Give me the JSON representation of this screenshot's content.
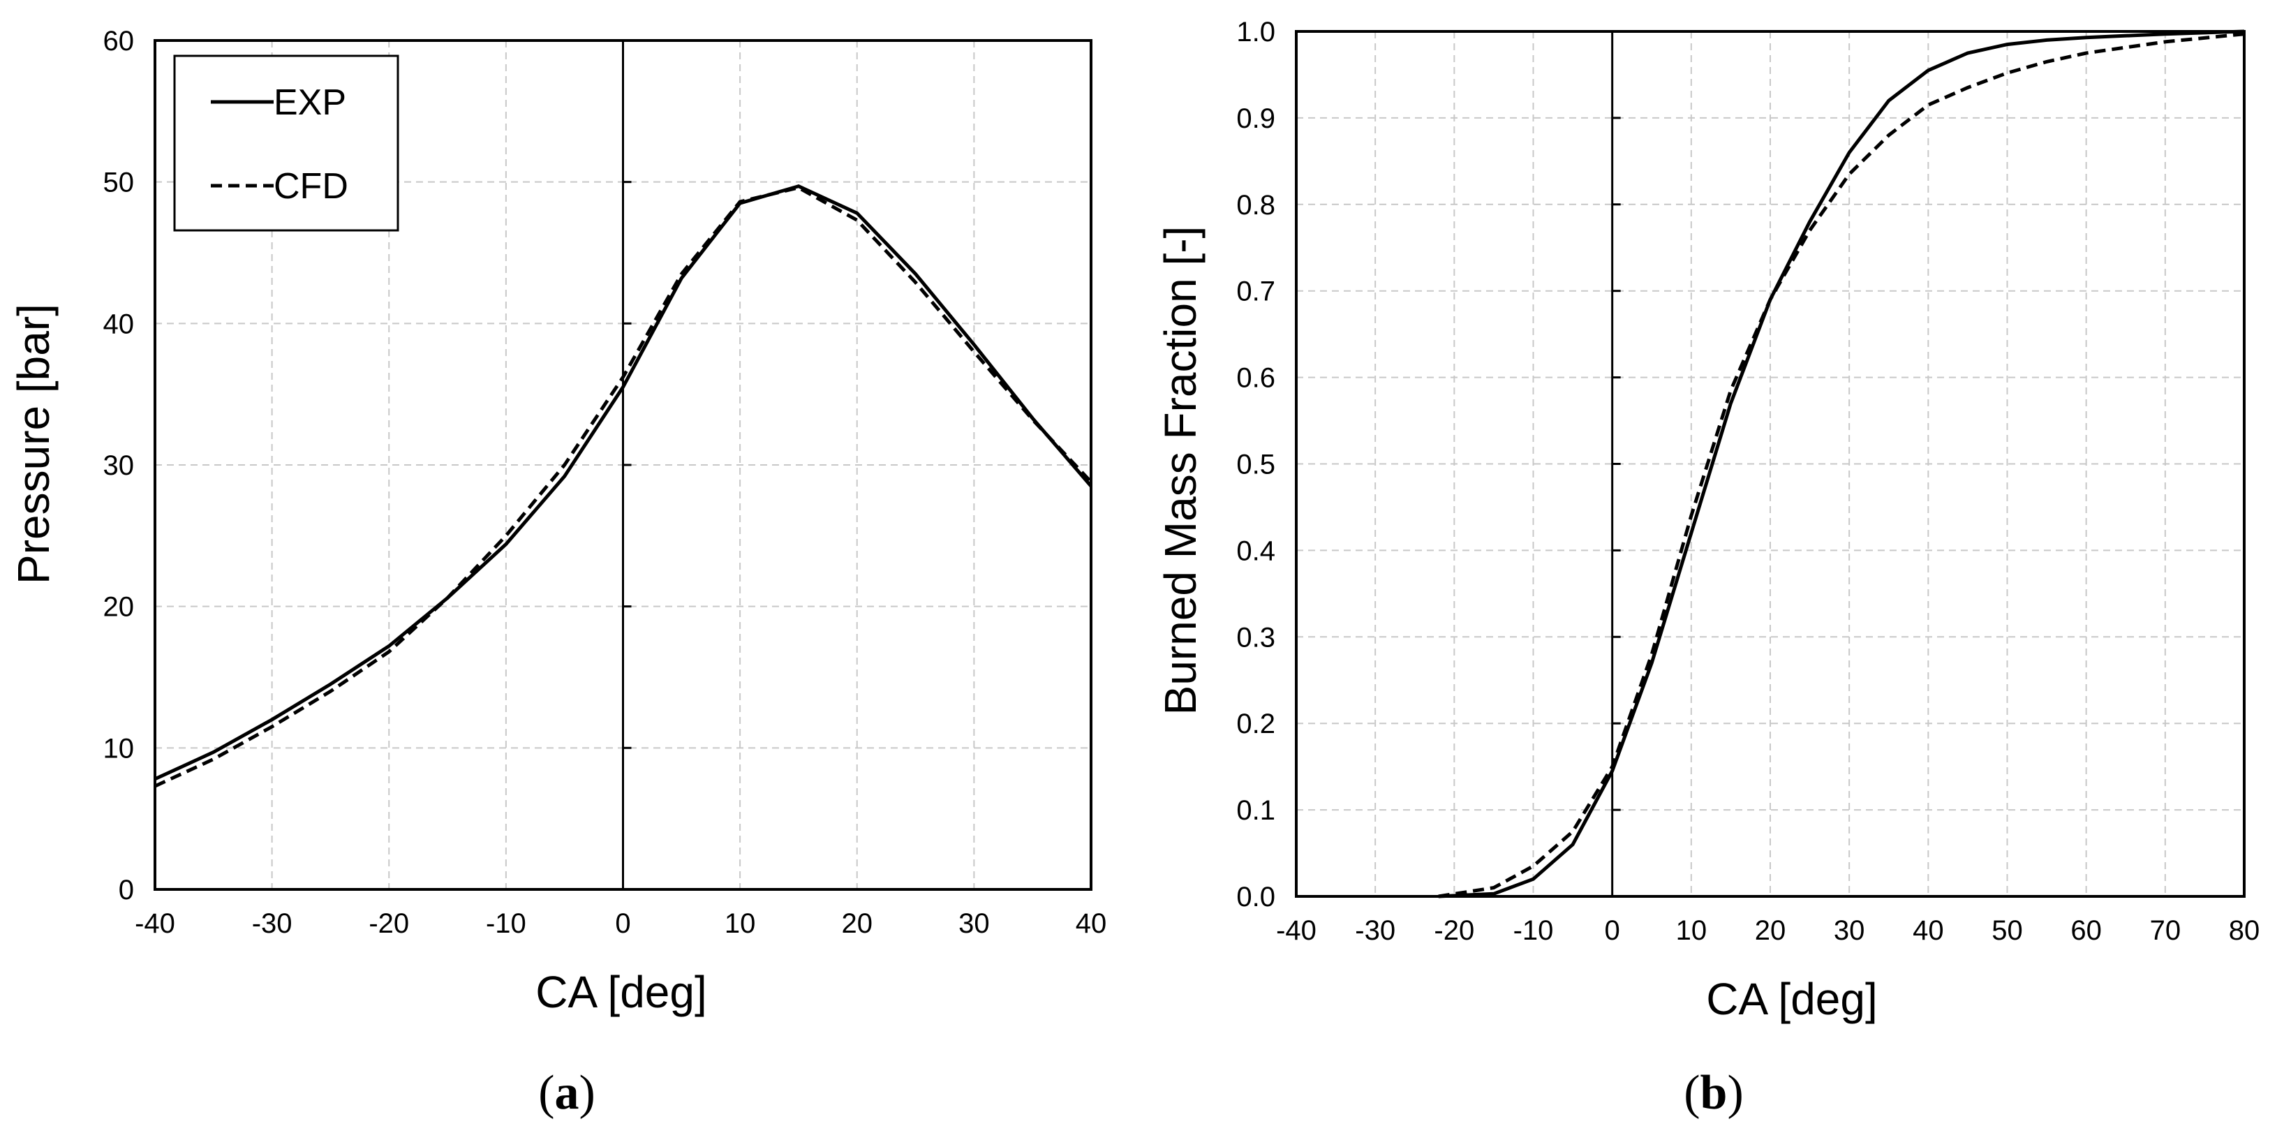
{
  "chart_data": [
    {
      "type": "line",
      "panel_label": "a",
      "title": "",
      "xlabel": "CA [deg]",
      "ylabel": "Pressure [bar]",
      "xlim": [
        -40,
        40
      ],
      "ylim": [
        0,
        60
      ],
      "x_ticks": [
        -40,
        -30,
        -20,
        -10,
        0,
        10,
        20,
        30,
        40
      ],
      "y_ticks": [
        0,
        10,
        20,
        30,
        40,
        50,
        60
      ],
      "x_tick_labels": [
        "-40",
        "-30",
        "-20",
        "-10",
        "0",
        "10",
        "20",
        "30",
        "40"
      ],
      "y_tick_labels": [
        "0",
        "10",
        "20",
        "30",
        "40",
        "50",
        "60"
      ],
      "grid": true,
      "legend": "top-left",
      "series": [
        {
          "name": "EXP",
          "style": "solid",
          "x": [
            -40,
            -35,
            -30,
            -25,
            -20,
            -15,
            -10,
            -5,
            0,
            5,
            10,
            15,
            20,
            25,
            30,
            35,
            40
          ],
          "y": [
            7.8,
            9.7,
            12.0,
            14.5,
            17.2,
            20.6,
            24.4,
            29.2,
            35.5,
            43.2,
            48.5,
            49.7,
            47.8,
            43.5,
            38.5,
            33.3,
            28.5
          ]
        },
        {
          "name": "CFD",
          "style": "dashed",
          "x": [
            -40,
            -35,
            -30,
            -25,
            -20,
            -15,
            -10,
            -5,
            0,
            5,
            10,
            15,
            20,
            25,
            30,
            35,
            40
          ],
          "y": [
            7.3,
            9.2,
            11.5,
            14.0,
            16.8,
            20.6,
            25.0,
            30.0,
            36.2,
            43.5,
            48.6,
            49.6,
            47.3,
            42.9,
            38.0,
            33.2,
            28.8
          ]
        }
      ]
    },
    {
      "type": "line",
      "panel_label": "b",
      "title": "",
      "xlabel": "CA [deg]",
      "ylabel": "Burned Mass Fraction [-]",
      "xlim": [
        -40,
        80
      ],
      "ylim": [
        0,
        1
      ],
      "x_ticks": [
        -40,
        -30,
        -20,
        -10,
        0,
        10,
        20,
        30,
        40,
        50,
        60,
        70,
        80
      ],
      "y_ticks": [
        0,
        0.1,
        0.2,
        0.3,
        0.4,
        0.5,
        0.6,
        0.7,
        0.8,
        0.9,
        1.0
      ],
      "x_tick_labels": [
        "-40",
        "-30",
        "-20",
        "-10",
        "0",
        "10",
        "20",
        "30",
        "40",
        "50",
        "60",
        "70",
        "80"
      ],
      "y_tick_labels": [
        "0.0",
        "0.1",
        "0.2",
        "0.3",
        "0.4",
        "0.5",
        "0.6",
        "0.7",
        "0.8",
        "0.9",
        "1.0"
      ],
      "grid": true,
      "legend": "none",
      "series": [
        {
          "name": "EXP",
          "style": "solid",
          "x": [
            -22,
            -15,
            -10,
            -5,
            0,
            5,
            10,
            15,
            20,
            25,
            30,
            35,
            40,
            45,
            50,
            55,
            60,
            70,
            80
          ],
          "y": [
            0.0,
            0.003,
            0.02,
            0.06,
            0.145,
            0.27,
            0.42,
            0.57,
            0.69,
            0.78,
            0.86,
            0.92,
            0.955,
            0.975,
            0.985,
            0.99,
            0.993,
            0.997,
            1.0
          ]
        },
        {
          "name": "CFD",
          "style": "dashed",
          "x": [
            -22,
            -15,
            -10,
            -5,
            0,
            5,
            10,
            15,
            20,
            25,
            30,
            35,
            40,
            45,
            50,
            55,
            60,
            70,
            80
          ],
          "y": [
            0.0,
            0.01,
            0.035,
            0.075,
            0.15,
            0.28,
            0.44,
            0.585,
            0.69,
            0.77,
            0.835,
            0.88,
            0.915,
            0.935,
            0.952,
            0.965,
            0.975,
            0.988,
            0.997
          ]
        }
      ]
    }
  ]
}
